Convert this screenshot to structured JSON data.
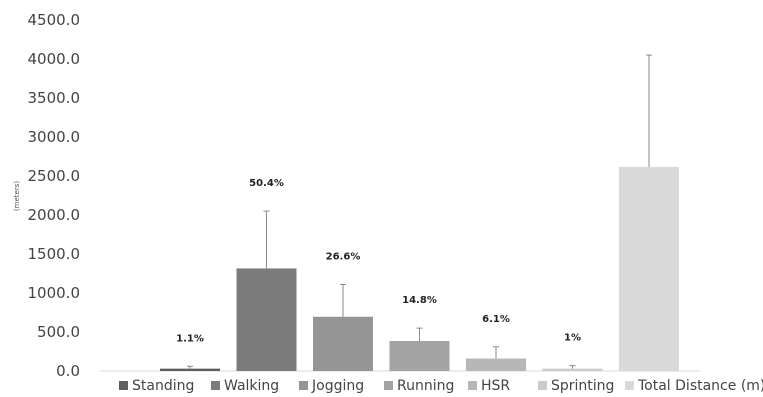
{
  "chart_data": {
    "type": "bar",
    "categories": [
      "Standing",
      "Walking",
      "Jogging",
      "Running",
      "HSR",
      "Sprinting",
      "Total Distance (m)"
    ],
    "values": [
      30,
      1315,
      695,
      385,
      160,
      30,
      2615
    ],
    "error_upper": [
      60,
      2050,
      1110,
      550,
      310,
      70,
      4050
    ],
    "data_labels": [
      "1.1%",
      "50.4%",
      "26.6%",
      "14.8%",
      "6.1%",
      "1%",
      ""
    ],
    "colors": [
      "#5e5e5e",
      "#7b7b7b",
      "#959595",
      "#a3a3a3",
      "#b7b7b7",
      "#cbcbcb",
      "#d9d9d9"
    ],
    "ylabel": "(meters)",
    "ylim": [
      0,
      4500
    ],
    "yticks": [
      "0.0",
      "500.0",
      "1000.0",
      "1500.0",
      "2000.0",
      "2500.0",
      "3000.0",
      "3500.0",
      "4000.0",
      "4500.0"
    ],
    "grid": false,
    "legend": "bottom"
  }
}
